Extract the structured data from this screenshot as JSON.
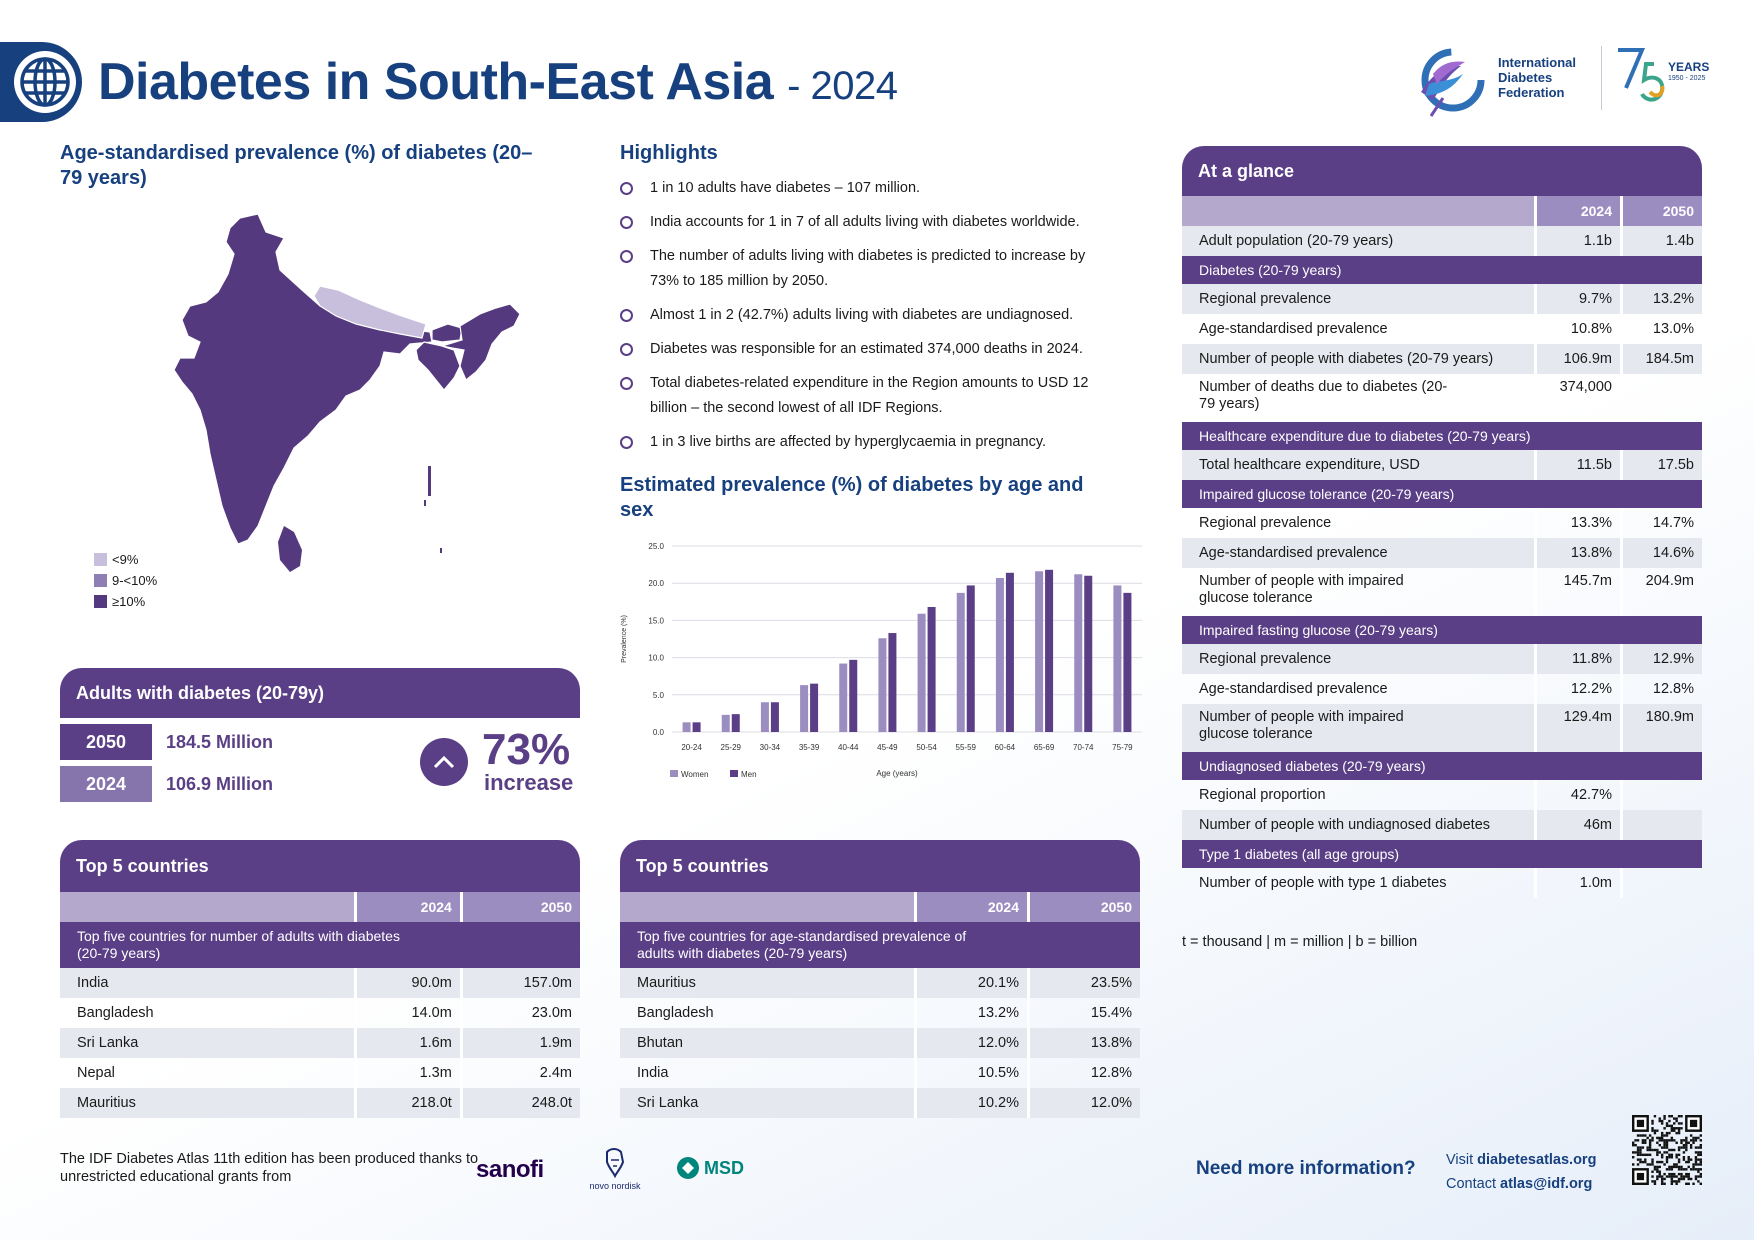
{
  "header": {
    "title": "Diabetes in South-East Asia",
    "year": "- 2024"
  },
  "logo": {
    "line1": "International",
    "line2": "Diabetes",
    "line3": "Federation",
    "years": "YEARS",
    "years_range": "1950 - 2025"
  },
  "map": {
    "title": "Age-standardised prevalence (%) of diabetes (20–79 years)",
    "legend": [
      {
        "label": "<9%",
        "color": "#c8bfdc"
      },
      {
        "label": "9-<10%",
        "color": "#8e7eb3"
      },
      {
        "label": "≥10%",
        "color": "#55397f"
      }
    ]
  },
  "highlights": {
    "title": "Highlights",
    "items": [
      "1 in 10 adults have diabetes – 107 million.",
      "India accounts for 1 in 7 of all adults living with diabetes worldwide.",
      "The number of adults living with diabetes is predicted to increase by 73% to 185 million by 2050.",
      "Almost 1 in 2 (42.7%) adults living with diabetes are undiagnosed.",
      "Diabetes was responsible for an estimated 374,000 deaths in 2024.",
      "Total diabetes-related expenditure in the Region amounts to USD 12 billion – the second lowest of all IDF Regions.",
      "1 in 3 live births are affected by hyperglycaemia in pregnancy."
    ]
  },
  "adults": {
    "title": "Adults with diabetes (20-79y)",
    "rows": [
      {
        "year": "2050",
        "value": "184.5 Million",
        "color": "#5a3f86"
      },
      {
        "year": "2024",
        "value": "106.9 Million",
        "color": "#8674ad"
      }
    ],
    "increase_pct": "73%",
    "increase_label": "increase"
  },
  "chart_data": {
    "type": "bar",
    "title": "Estimated prevalence (%) of diabetes by age and sex",
    "xlabel": "Age (years)",
    "ylabel": "Prevalence (%)",
    "ylim": [
      0,
      25
    ],
    "yticks": [
      "0.0",
      "5.0",
      "10.0",
      "15.0",
      "20.0",
      "25.0"
    ],
    "categories": [
      "20-24",
      "25-29",
      "30-34",
      "35-39",
      "40-44",
      "45-49",
      "50-54",
      "55-59",
      "60-64",
      "65-69",
      "70-74",
      "75-79"
    ],
    "series": [
      {
        "name": "Women",
        "color": "#9c8dc0",
        "values": [
          1.3,
          2.3,
          4.0,
          6.3,
          9.2,
          12.6,
          15.9,
          18.7,
          20.7,
          21.6,
          21.2,
          19.7
        ]
      },
      {
        "name": "Men",
        "color": "#5a3f86",
        "values": [
          1.3,
          2.4,
          4.0,
          6.5,
          9.7,
          13.3,
          16.8,
          19.7,
          21.4,
          21.8,
          21.0,
          18.7
        ]
      }
    ]
  },
  "top5_left": {
    "title": "Top 5 countries",
    "col_2024": "2024",
    "col_2050": "2050",
    "subtitle": "Top five countries for number of adults with diabetes (20-79 years)",
    "rows": [
      {
        "country": "India",
        "v2024": "90.0m",
        "v2050": "157.0m"
      },
      {
        "country": "Bangladesh",
        "v2024": "14.0m",
        "v2050": "23.0m"
      },
      {
        "country": "Sri Lanka",
        "v2024": "1.6m",
        "v2050": "1.9m"
      },
      {
        "country": "Nepal",
        "v2024": "1.3m",
        "v2050": "2.4m"
      },
      {
        "country": "Mauritius",
        "v2024": "218.0t",
        "v2050": "248.0t"
      }
    ]
  },
  "top5_right": {
    "title": "Top 5 countries",
    "col_2024": "2024",
    "col_2050": "2050",
    "subtitle": "Top five countries for age-standardised prevalence of adults with diabetes (20-79 years)",
    "rows": [
      {
        "country": "Mauritius",
        "v2024": "20.1%",
        "v2050": "23.5%"
      },
      {
        "country": "Bangladesh",
        "v2024": "13.2%",
        "v2050": "15.4%"
      },
      {
        "country": "Bhutan",
        "v2024": "12.0%",
        "v2050": "13.8%"
      },
      {
        "country": "India",
        "v2024": "10.5%",
        "v2050": "12.8%"
      },
      {
        "country": "Sri Lanka",
        "v2024": "10.2%",
        "v2050": "12.0%"
      }
    ]
  },
  "glance": {
    "title": "At a glance",
    "col_2024": "2024",
    "col_2050": "2050",
    "adult_pop": {
      "label": "Adult population (20-79 years)",
      "v2024": "1.1b",
      "v2050": "1.4b"
    },
    "diabetes": {
      "header": "Diabetes (20-79 years)",
      "regional": {
        "label": "Regional prevalence",
        "v2024": "9.7%",
        "v2050": "13.2%"
      },
      "agestd": {
        "label": "Age-standardised prevalence",
        "v2024": "10.8%",
        "v2050": "13.0%"
      },
      "people": {
        "label": "Number of people with diabetes (20-79 years)",
        "v2024": "106.9m",
        "v2050": "184.5m"
      },
      "deaths": {
        "label": "Number of deaths due to diabetes (20-79 years)",
        "v2024": "374,000",
        "v2050": ""
      }
    },
    "health": {
      "header": "Healthcare expenditure due to diabetes (20-79 years)",
      "total": {
        "label": "Total healthcare expenditure, USD",
        "v2024": "11.5b",
        "v2050": "17.5b"
      }
    },
    "igt": {
      "header": "Impaired glucose tolerance (20-79 years)",
      "regional": {
        "label": "Regional prevalence",
        "v2024": "13.3%",
        "v2050": "14.7%"
      },
      "agestd": {
        "label": "Age-standardised prevalence",
        "v2024": "13.8%",
        "v2050": "14.6%"
      },
      "people": {
        "label": "Number of people with impaired glucose tolerance",
        "v2024": "145.7m",
        "v2050": "204.9m"
      }
    },
    "ifg": {
      "header": "Impaired fasting glucose (20-79 years)",
      "regional": {
        "label": "Regional prevalence",
        "v2024": "11.8%",
        "v2050": "12.9%"
      },
      "agestd": {
        "label": "Age-standardised prevalence",
        "v2024": "12.2%",
        "v2050": "12.8%"
      },
      "people": {
        "label": "Number of people with impaired glucose tolerance",
        "v2024": "129.4m",
        "v2050": "180.9m"
      }
    },
    "undiag": {
      "header": "Undiagnosed diabetes (20-79 years)",
      "proportion": {
        "label": "Regional proportion",
        "v2024": "42.7%",
        "v2050": ""
      },
      "people": {
        "label": "Number of people with undiagnosed diabetes",
        "v2024": "46m",
        "v2050": ""
      }
    },
    "t1d": {
      "header": "Type 1 diabetes (all age groups)",
      "people": {
        "label": "Number of people with type 1 diabetes",
        "v2024": "1.0m",
        "v2050": ""
      }
    }
  },
  "units_note": "t = thousand | m = million | b = billion",
  "footer": {
    "text": "The IDF Diabetes Atlas 11th edition has been produced thanks to unrestricted educational grants from",
    "sponsor1": "sanofi",
    "sponsor2": "novo nordisk",
    "sponsor3": "MSD",
    "need_info": "Need more information?",
    "visit_prefix": "Visit",
    "visit_url": "diabetesatlas.org",
    "contact_prefix": "Contact",
    "contact_email": "atlas@idf.org"
  }
}
